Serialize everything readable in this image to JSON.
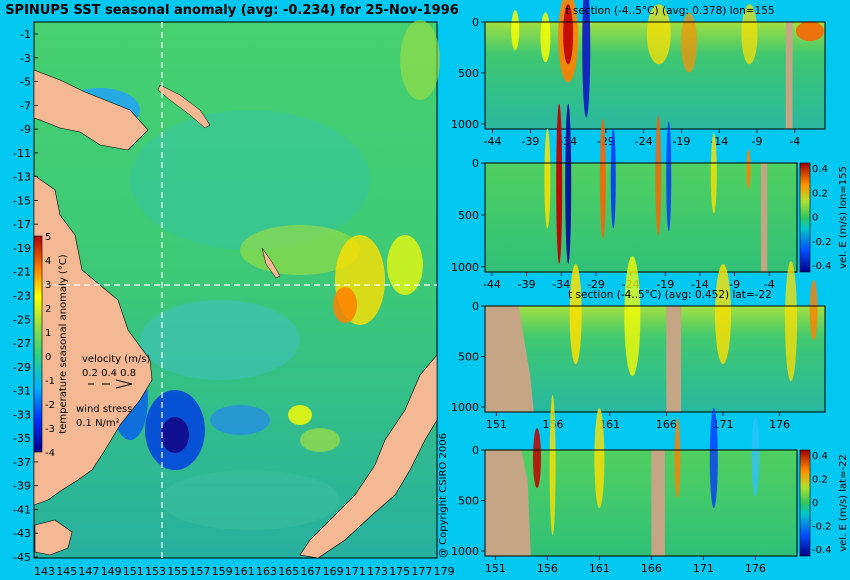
{
  "colors": {
    "background": "#00c8f0",
    "land": "#f4b894",
    "mask": "#c4a684",
    "ocean_mid": "#38c860"
  },
  "main_map": {
    "title": "SPINUP5 SST seasonal anomaly (avg: -0.234) for 25-Nov-1996",
    "lat_ticks": [
      "-1",
      "-3",
      "-5",
      "-7",
      "-9",
      "-11",
      "-13",
      "-15",
      "-17",
      "-19",
      "-21",
      "-23",
      "-25",
      "-27",
      "-29",
      "-31",
      "-33",
      "-35",
      "-37",
      "-39",
      "-41",
      "-43",
      "-45"
    ],
    "lon_ticks": [
      "143",
      "145",
      "147",
      "149",
      "151",
      "153",
      "155",
      "157",
      "159",
      "161",
      "163",
      "165",
      "167",
      "169",
      "171",
      "173",
      "175",
      "177",
      "179"
    ],
    "colorbar": {
      "label": "temperature seasonal anomaly (°C)",
      "ticks": [
        "5",
        "4",
        "3",
        "2",
        "1",
        "0",
        "-1",
        "-2",
        "-3",
        "-4"
      ]
    },
    "velocity_legend": {
      "label": "velocity (m/s)",
      "values": "0.2 0.4 0.8"
    },
    "wind_legend": {
      "label": "wind stress",
      "value": "0.1 N/m²"
    },
    "copyright": "@ Copyright CSIRO 2006"
  },
  "chart_data": [
    {
      "type": "heatmap",
      "id": "t-section-lon",
      "title": "t section (-4..5°C) (avg: 0.378) lon=155",
      "x_ticks": [
        "-44",
        "-39",
        "-34",
        "-29",
        "-24",
        "-19",
        "-14",
        "-9",
        "-4"
      ],
      "y_ticks": [
        "0",
        "500",
        "1000"
      ],
      "xlim": [
        -45,
        0
      ],
      "ylim": [
        1050,
        0
      ]
    },
    {
      "type": "heatmap",
      "id": "vel-section-lon",
      "title": "",
      "x_ticks": [
        "-44",
        "-39",
        "-34",
        "-29",
        "-24",
        "-19",
        "-14",
        "-9",
        "-4"
      ],
      "y_ticks": [
        "0",
        "500",
        "1000"
      ],
      "xlim": [
        -45,
        0
      ],
      "ylim": [
        1050,
        0
      ],
      "colorbar": {
        "label": "vel. E (m/s) lon=155",
        "ticks": [
          "0.4",
          "0.2",
          "0",
          "-0.2",
          "-0.4"
        ]
      }
    },
    {
      "type": "heatmap",
      "id": "t-section-lat",
      "title": "t section (-4..5°C) (avg: 0.452) lat=-22",
      "x_ticks": [
        "151",
        "156",
        "161",
        "166",
        "171",
        "176"
      ],
      "y_ticks": [
        "0",
        "500",
        "1000"
      ],
      "xlim": [
        150,
        180
      ],
      "ylim": [
        1050,
        0
      ]
    },
    {
      "type": "heatmap",
      "id": "vel-section-lat",
      "title": "",
      "x_ticks": [
        "151",
        "156",
        "161",
        "166",
        "171",
        "176"
      ],
      "y_ticks": [
        "0",
        "500",
        "1000"
      ],
      "xlim": [
        150,
        180
      ],
      "ylim": [
        1050,
        0
      ],
      "colorbar": {
        "label": "vel. E (m/s) lat=-22",
        "ticks": [
          "0.4",
          "0.2",
          "0",
          "-0.2",
          "-0.4"
        ]
      }
    }
  ]
}
